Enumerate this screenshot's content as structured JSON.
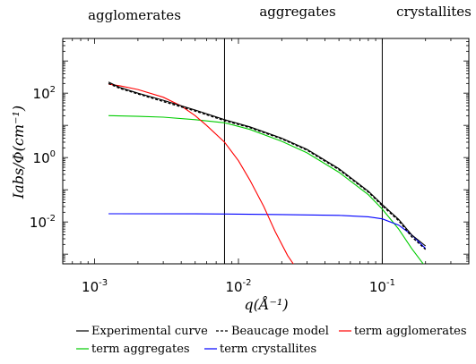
{
  "chart_data": {
    "type": "line",
    "xlabel": "q(Å⁻¹)",
    "ylabel": "Iabs/Φ(cm⁻¹)",
    "xscale": "log",
    "yscale": "log",
    "xlim": [
      0.0006,
      0.4
    ],
    "ylim": [
      0.0005,
      5000
    ],
    "x_ticks": [
      {
        "value": 0.001,
        "base": "10",
        "exp": "-3"
      },
      {
        "value": 0.01,
        "base": "10",
        "exp": "-2"
      },
      {
        "value": 0.1,
        "base": "10",
        "exp": "-1"
      }
    ],
    "y_ticks": [
      {
        "value": 0.01,
        "base": "10",
        "exp": "-2"
      },
      {
        "value": 1,
        "base": "10",
        "exp": "0"
      },
      {
        "value": 100,
        "base": "10",
        "exp": "2"
      }
    ],
    "vertical_lines": [
      0.008,
      0.1
    ],
    "region_labels": [
      "agglomerates",
      "aggregates",
      "crystallites"
    ],
    "legend_items": [
      "Experimental curve",
      "Beaucage model",
      "term agglomerates",
      "term aggregates",
      "term crystallites"
    ],
    "series": [
      {
        "name": "Experimental curve",
        "color": "#000000",
        "style": "solid",
        "x": [
          0.00125,
          0.0015,
          0.002,
          0.003,
          0.005,
          0.008,
          0.012,
          0.02,
          0.03,
          0.05,
          0.08,
          0.1,
          0.13,
          0.16,
          0.2
        ],
        "y": [
          220,
          150,
          100,
          60,
          30,
          15,
          9,
          4,
          1.8,
          0.45,
          0.09,
          0.035,
          0.012,
          0.004,
          0.0018
        ]
      },
      {
        "name": "Beaucage model",
        "color": "#000000",
        "style": "dashed",
        "x": [
          0.00125,
          0.0015,
          0.002,
          0.003,
          0.005,
          0.008,
          0.012,
          0.02,
          0.03,
          0.05,
          0.08,
          0.1,
          0.13,
          0.16,
          0.2
        ],
        "y": [
          200,
          140,
          95,
          55,
          28,
          14,
          8.5,
          3.8,
          1.7,
          0.42,
          0.085,
          0.032,
          0.011,
          0.0035,
          0.0014
        ]
      },
      {
        "name": "term agglomerates",
        "color": "#ff0000",
        "style": "solid",
        "x": [
          0.00125,
          0.0015,
          0.002,
          0.003,
          0.004,
          0.005,
          0.006,
          0.008,
          0.01,
          0.012,
          0.015,
          0.018,
          0.022,
          0.026
        ],
        "y": [
          190,
          170,
          130,
          75,
          40,
          20,
          10,
          3,
          0.8,
          0.2,
          0.03,
          0.005,
          0.0009,
          0.0003
        ]
      },
      {
        "name": "term aggregates",
        "color": "#00cc00",
        "style": "solid",
        "x": [
          0.00125,
          0.002,
          0.003,
          0.005,
          0.008,
          0.012,
          0.02,
          0.03,
          0.05,
          0.08,
          0.1,
          0.13,
          0.16,
          0.2
        ],
        "y": [
          20,
          19,
          18,
          15,
          12,
          7.5,
          3.2,
          1.4,
          0.35,
          0.07,
          0.025,
          0.006,
          0.0015,
          0.0004
        ]
      },
      {
        "name": "term crystallites",
        "color": "#0000ff",
        "style": "solid",
        "x": [
          0.00125,
          0.005,
          0.01,
          0.02,
          0.05,
          0.08,
          0.1,
          0.13,
          0.16,
          0.2
        ],
        "y": [
          0.018,
          0.0178,
          0.0175,
          0.017,
          0.016,
          0.0145,
          0.0125,
          0.008,
          0.004,
          0.0015
        ]
      }
    ]
  }
}
